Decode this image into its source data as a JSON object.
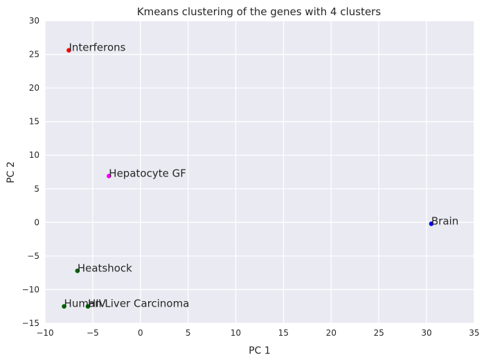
{
  "chart_data": {
    "type": "scatter",
    "title": "Kmeans clustering of the genes with 4 clusters",
    "xlabel": "PC 1",
    "ylabel": "PC 2",
    "xlim": [
      -10,
      35
    ],
    "ylim": [
      -15,
      30
    ],
    "xticks": [
      -10,
      -5,
      0,
      5,
      10,
      15,
      20,
      25,
      30,
      35
    ],
    "yticks": [
      -15,
      -10,
      -5,
      0,
      5,
      10,
      15,
      20,
      25,
      30
    ],
    "xtick_labels": [
      "−10",
      "−5",
      "0",
      "5",
      "10",
      "15",
      "20",
      "25",
      "30",
      "35"
    ],
    "ytick_labels": [
      "−15",
      "−10",
      "−5",
      "0",
      "5",
      "10",
      "15",
      "20",
      "25",
      "30"
    ],
    "grid": true,
    "background": "#eaeaf2",
    "grid_color": "#ffffff",
    "points": [
      {
        "label": "Interferons",
        "x": -7.5,
        "y": 25.6,
        "color": "#ff0000"
      },
      {
        "label": "Hepatocyte GF",
        "x": -3.3,
        "y": 6.9,
        "color": "#ff00ff"
      },
      {
        "label": "Brain",
        "x": 30.5,
        "y": -0.2,
        "color": "#0000ff"
      },
      {
        "label": "Heatshock",
        "x": -6.6,
        "y": -7.2,
        "color": "#006400"
      },
      {
        "label": "Human Liver Carcinoma",
        "x": -8.0,
        "y": -12.5,
        "color": "#006400"
      },
      {
        "label": "HIV",
        "x": -5.5,
        "y": -12.5,
        "color": "#006400"
      }
    ]
  }
}
